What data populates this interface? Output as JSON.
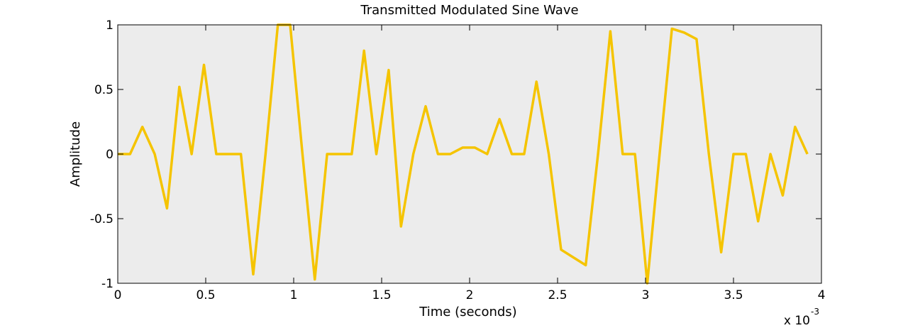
{
  "chart_data": {
    "type": "line",
    "title": "Transmitted Modulated Sine Wave",
    "xlabel": "Time (seconds)",
    "ylabel": "Amplitude",
    "x_exponent_base": "x 10",
    "x_exponent_power": "-3",
    "xlim": [
      0,
      4
    ],
    "ylim": [
      -1,
      1
    ],
    "xticks": [
      0,
      0.5,
      1,
      1.5,
      2,
      2.5,
      3,
      3.5,
      4
    ],
    "xtick_labels": [
      "0",
      "0.5",
      "1",
      "1.5",
      "2",
      "2.5",
      "3",
      "3.5",
      "4"
    ],
    "yticks": [
      -1,
      -0.5,
      0,
      0.5,
      1
    ],
    "ytick_labels": [
      "-1",
      "-0.5",
      "0",
      "0.5",
      "1"
    ],
    "grid": false,
    "background_color": "#ececec",
    "series": [
      {
        "color": "#f5c400",
        "x": [
          0,
          0.07,
          0.14,
          0.21,
          0.28,
          0.35,
          0.42,
          0.49,
          0.56,
          0.63,
          0.7,
          0.77,
          0.84,
          0.91,
          0.98,
          1.05,
          1.12,
          1.19,
          1.26,
          1.33,
          1.4,
          1.47,
          1.54,
          1.61,
          1.68,
          1.75,
          1.82,
          1.89,
          1.96,
          2.03,
          2.1,
          2.17,
          2.24,
          2.31,
          2.38,
          2.45,
          2.52,
          2.59,
          2.66,
          2.73,
          2.8,
          2.87,
          2.94,
          3.01,
          3.08,
          3.15,
          3.22,
          3.29,
          3.36,
          3.43,
          3.5,
          3.57,
          3.64,
          3.71,
          3.78,
          3.85,
          3.92
        ],
        "y": [
          0,
          0,
          0.21,
          0,
          -0.42,
          0.52,
          0,
          0.69,
          0,
          0,
          0,
          -0.93,
          0,
          1.0,
          1.0,
          0,
          -0.97,
          0,
          0,
          0,
          0.8,
          0,
          0.65,
          -0.56,
          0,
          0.37,
          0,
          0,
          0.05,
          0.05,
          0,
          0.27,
          0,
          0,
          0.56,
          0,
          -0.74,
          -0.8,
          -0.86,
          0,
          0.95,
          0,
          0,
          -1.0,
          0,
          0.97,
          0.94,
          0.89,
          0,
          -0.76,
          0,
          0,
          -0.52,
          0,
          -0.32,
          0.21,
          0
        ]
      }
    ]
  }
}
